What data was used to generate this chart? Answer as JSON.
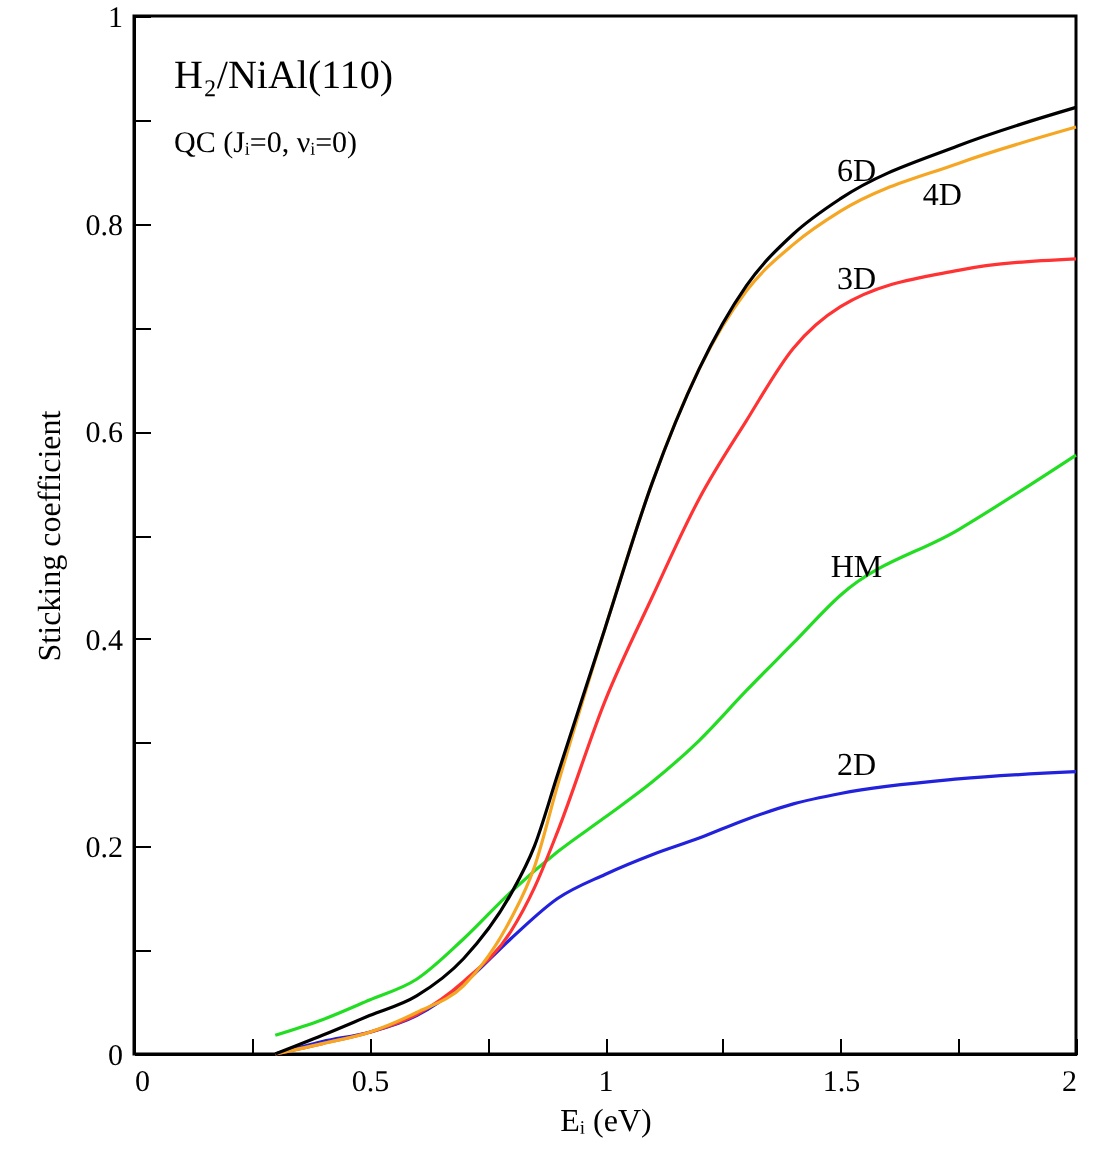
{
  "chart_data": {
    "type": "line",
    "title": "H₂/NiAl(110)",
    "subtitle": "QC (Jᵢ=0, νᵢ=0)",
    "xlabel": "Eᵢ (eV)",
    "ylabel": "Sticking coefficient",
    "xlim": [
      0,
      2
    ],
    "ylim": [
      0,
      1
    ],
    "xticks": [
      0,
      {
        "value": 0.25,
        "label": null
      },
      0.5,
      {
        "value": 0.75,
        "label": null
      },
      1,
      {
        "value": 1.25,
        "label": null
      },
      1.5,
      {
        "value": 1.75,
        "label": null
      },
      2
    ],
    "yticks": [
      0,
      {
        "value": 0.1,
        "label": null
      },
      0.2,
      {
        "value": 0.3,
        "label": null
      },
      0.4,
      {
        "value": 0.5,
        "label": null
      },
      0.6,
      {
        "value": 0.7,
        "label": null
      },
      0.8,
      {
        "value": 0.9,
        "label": null
      },
      1
    ],
    "grid": false,
    "line_style": "solid",
    "series": [
      {
        "name": "6D",
        "color": "#000000",
        "x": [
          0.3,
          0.4,
          0.5,
          0.6,
          0.7,
          0.8,
          0.85,
          0.9,
          1.0,
          1.1,
          1.2,
          1.3,
          1.4,
          1.5,
          1.75,
          2.0
        ],
        "values": [
          0,
          0.018,
          0.037,
          0.056,
          0.092,
          0.154,
          0.2,
          0.27,
          0.41,
          0.55,
          0.66,
          0.74,
          0.79,
          0.824,
          0.875,
          0.912
        ]
      },
      {
        "name": "4D",
        "color": "#f5a623",
        "x": [
          0.3,
          0.4,
          0.5,
          0.6,
          0.7,
          0.8,
          0.85,
          0.9,
          1.0,
          1.1,
          1.2,
          1.3,
          1.4,
          1.5,
          1.75,
          2.0
        ],
        "values": [
          0,
          0.01,
          0.021,
          0.04,
          0.066,
          0.13,
          0.18,
          0.26,
          0.41,
          0.55,
          0.66,
          0.735,
          0.78,
          0.812,
          0.858,
          0.893
        ]
      },
      {
        "name": "3D",
        "color": "#ff3333",
        "x": [
          0.3,
          0.4,
          0.5,
          0.6,
          0.7,
          0.8,
          0.85,
          0.9,
          1.0,
          1.1,
          1.2,
          1.3,
          1.4,
          1.5,
          1.75,
          2.0
        ],
        "values": [
          0,
          0.01,
          0.021,
          0.038,
          0.07,
          0.118,
          0.16,
          0.215,
          0.34,
          0.44,
          0.535,
          0.61,
          0.68,
          0.72,
          0.755,
          0.766
        ]
      },
      {
        "name": "HM",
        "color": "#22dd22",
        "x": [
          0.3,
          0.4,
          0.5,
          0.6,
          0.7,
          0.8,
          0.9,
          1.0,
          1.1,
          1.2,
          1.3,
          1.4,
          1.5,
          1.75,
          2.0
        ],
        "values": [
          0.018,
          0.033,
          0.052,
          0.072,
          0.111,
          0.156,
          0.195,
          0.228,
          0.262,
          0.302,
          0.35,
          0.396,
          0.442,
          0.505,
          0.577
        ]
      },
      {
        "name": "2D",
        "color": "#2222dd",
        "x": [
          0.3,
          0.4,
          0.5,
          0.6,
          0.7,
          0.8,
          0.9,
          1.0,
          1.1,
          1.2,
          1.3,
          1.4,
          1.5,
          1.75,
          2.0
        ],
        "values": [
          0,
          0.012,
          0.021,
          0.037,
          0.068,
          0.111,
          0.15,
          0.173,
          0.192,
          0.208,
          0.226,
          0.241,
          0.251,
          0.265,
          0.272
        ]
      }
    ]
  }
}
